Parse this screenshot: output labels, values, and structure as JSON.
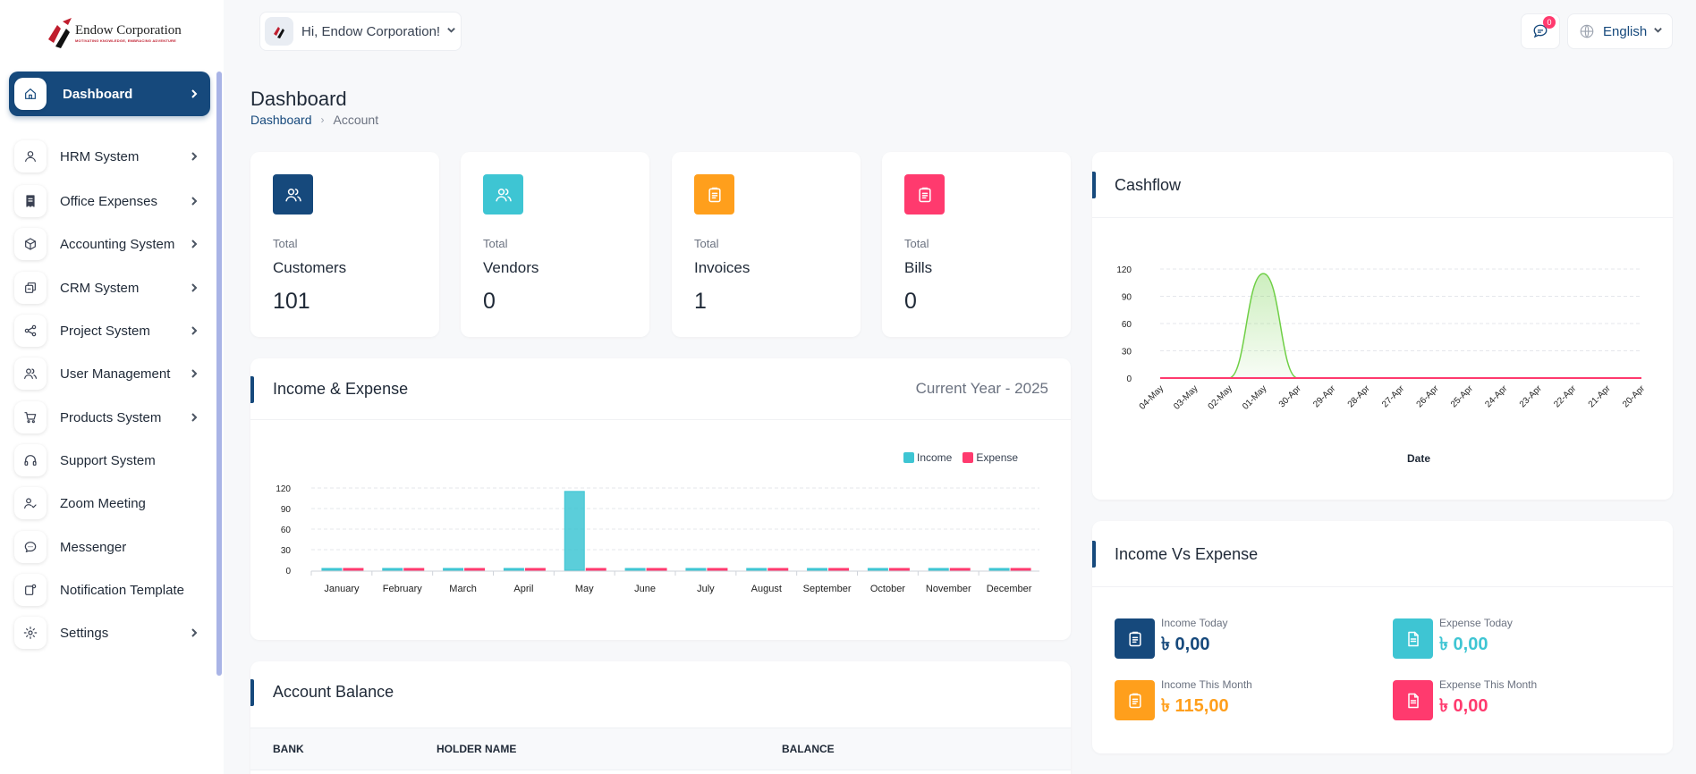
{
  "brand": {
    "name": "Endow Corporation",
    "tagline": "MOTIVATING KNOWLEDGE, EMBRACING ADVENTURE",
    "colors": {
      "primary": "#16497c",
      "teal": "#3ec5d3",
      "orange": "#ff9f1c",
      "pink": "#ff3a6e"
    }
  },
  "sidebar": {
    "items": [
      {
        "label": "Dashboard",
        "icon": "home-icon",
        "active": true,
        "has_chevron": true
      },
      {
        "label": "HRM System",
        "icon": "user-icon",
        "active": false,
        "has_chevron": true
      },
      {
        "label": "Office Expenses",
        "icon": "receipt-icon",
        "active": false,
        "has_chevron": true
      },
      {
        "label": "Accounting System",
        "icon": "box-icon",
        "active": false,
        "has_chevron": true
      },
      {
        "label": "CRM System",
        "icon": "layers-icon",
        "active": false,
        "has_chevron": true
      },
      {
        "label": "Project System",
        "icon": "share-icon",
        "active": false,
        "has_chevron": true
      },
      {
        "label": "User Management",
        "icon": "users-icon",
        "active": false,
        "has_chevron": true
      },
      {
        "label": "Products System",
        "icon": "cart-icon",
        "active": false,
        "has_chevron": true
      },
      {
        "label": "Support System",
        "icon": "headphones-icon",
        "active": false,
        "has_chevron": false
      },
      {
        "label": "Zoom Meeting",
        "icon": "user-check-icon",
        "active": false,
        "has_chevron": false
      },
      {
        "label": "Messenger",
        "icon": "message-icon",
        "active": false,
        "has_chevron": false
      },
      {
        "label": "Notification Template",
        "icon": "notification-icon",
        "active": false,
        "has_chevron": false
      },
      {
        "label": "Settings",
        "icon": "gear-icon",
        "active": false,
        "has_chevron": true
      }
    ]
  },
  "header": {
    "greeting": "Hi, Endow Corporation!",
    "messages_badge": "0",
    "language": "English"
  },
  "page": {
    "title": "Dashboard",
    "breadcrumb": [
      "Dashboard",
      "Account"
    ]
  },
  "stats": [
    {
      "small": "Total",
      "name": "Customers",
      "value": "101",
      "color": "#16497c",
      "icon": "users-icon"
    },
    {
      "small": "Total",
      "name": "Vendors",
      "value": "0",
      "color": "#3ec5d3",
      "icon": "users-icon"
    },
    {
      "small": "Total",
      "name": "Invoices",
      "value": "1",
      "color": "#ff9f1c",
      "icon": "clipboard-icon"
    },
    {
      "small": "Total",
      "name": "Bills",
      "value": "0",
      "color": "#ff3a6e",
      "icon": "clipboard-icon"
    }
  ],
  "income_expense": {
    "title": "Income & Expense",
    "subtitle": "Current Year - 2025",
    "legend": [
      "Income",
      "Expense"
    ]
  },
  "cashflow": {
    "title": "Cashflow",
    "xlabel": "Date"
  },
  "account_balance": {
    "title": "Account Balance",
    "columns": [
      "BANK",
      "HOLDER NAME",
      "BALANCE"
    ]
  },
  "income_vs_expense": {
    "title": "Income Vs Expense",
    "items": [
      {
        "label": "Income Today",
        "value": "৳ 0,00",
        "color": "#16497c",
        "icon": "clipboard-icon"
      },
      {
        "label": "Expense Today",
        "value": "৳ 0,00",
        "color": "#3ec5d3",
        "icon": "file-icon"
      },
      {
        "label": "Income This Month",
        "value": "৳ 115,00",
        "color": "#ff9f1c",
        "icon": "clipboard-icon"
      },
      {
        "label": "Expense This Month",
        "value": "৳ 0,00",
        "color": "#ff3a6e",
        "icon": "file-icon"
      }
    ]
  },
  "chart_data": [
    {
      "type": "bar",
      "title": "Income & Expense",
      "categories": [
        "January",
        "February",
        "March",
        "April",
        "May",
        "June",
        "July",
        "August",
        "September",
        "October",
        "November",
        "December"
      ],
      "series": [
        {
          "name": "Income",
          "color": "#3ec5d3",
          "values": [
            0,
            0,
            0,
            0,
            115,
            0,
            0,
            0,
            0,
            0,
            0,
            0
          ]
        },
        {
          "name": "Expense",
          "color": "#ff3a6e",
          "values": [
            0,
            0,
            0,
            0,
            0,
            0,
            0,
            0,
            0,
            0,
            0,
            0
          ]
        }
      ],
      "yticks": [
        0,
        30,
        60,
        90,
        120
      ],
      "ylim": [
        0,
        120
      ],
      "grid": true,
      "legend_position": "top-right"
    },
    {
      "type": "area",
      "title": "Cashflow",
      "xlabel": "Date",
      "x": [
        "04-May",
        "03-May",
        "02-May",
        "01-May",
        "30-Apr",
        "29-Apr",
        "28-Apr",
        "27-Apr",
        "26-Apr",
        "25-Apr",
        "24-Apr",
        "23-Apr",
        "22-Apr",
        "21-Apr",
        "20-Apr"
      ],
      "series": [
        {
          "color": "#6fcf46",
          "values": [
            0,
            0,
            0,
            115,
            0,
            0,
            0,
            0,
            0,
            0,
            0,
            0,
            0,
            0,
            0
          ]
        },
        {
          "color": "#ff3a6e",
          "values": [
            0,
            0,
            0,
            0,
            0,
            0,
            0,
            0,
            0,
            0,
            0,
            0,
            0,
            0,
            0
          ]
        }
      ],
      "yticks": [
        0,
        30,
        60,
        90,
        120
      ],
      "ylim": [
        0,
        120
      ],
      "grid": true
    }
  ]
}
